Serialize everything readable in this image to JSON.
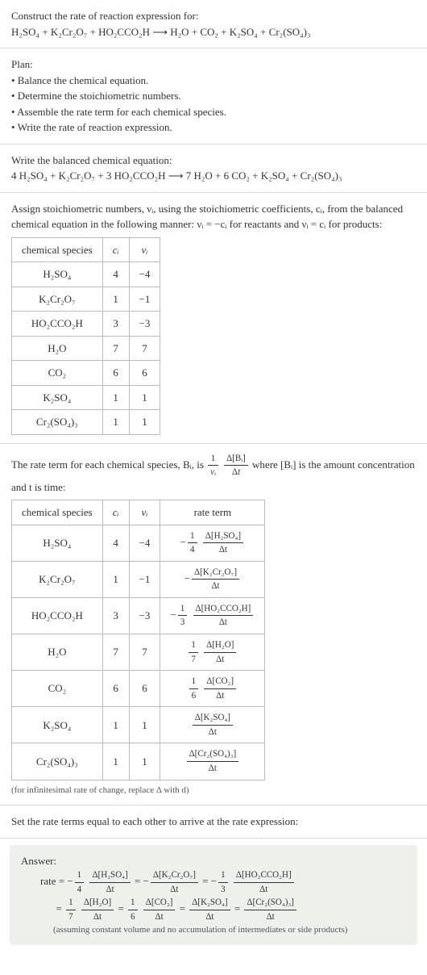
{
  "prompt": {
    "line1": "Construct the rate of reaction expression for:",
    "equation": "H₂SO₄ + K₂Cr₂O₇ + HO₂CCO₂H ⟶ H₂O + CO₂ + K₂SO₄ + Cr₂(SO₄)₃"
  },
  "plan": {
    "title": "Plan:",
    "items": [
      "• Balance the chemical equation.",
      "• Determine the stoichiometric numbers.",
      "• Assemble the rate term for each chemical species.",
      "• Write the rate of reaction expression."
    ]
  },
  "balanced": {
    "title": "Write the balanced chemical equation:",
    "equation": "4 H₂SO₄ + K₂Cr₂O₇ + 3 HO₂CCO₂H ⟶ 7 H₂O + 6 CO₂ + K₂SO₄ + Cr₂(SO₄)₃"
  },
  "stoich": {
    "intro_a": "Assign stoichiometric numbers, νᵢ, using the stoichiometric coefficients, cᵢ, from the balanced chemical equation in the following manner: νᵢ = −cᵢ for reactants and νᵢ = cᵢ for products:",
    "headers": [
      "chemical species",
      "cᵢ",
      "νᵢ"
    ],
    "rows": [
      {
        "sp": "H₂SO₄",
        "c": "4",
        "v": "−4"
      },
      {
        "sp": "K₂Cr₂O₇",
        "c": "1",
        "v": "−1"
      },
      {
        "sp": "HO₂CCO₂H",
        "c": "3",
        "v": "−3"
      },
      {
        "sp": "H₂O",
        "c": "7",
        "v": "7"
      },
      {
        "sp": "CO₂",
        "c": "6",
        "v": "6"
      },
      {
        "sp": "K₂SO₄",
        "c": "1",
        "v": "1"
      },
      {
        "sp": "Cr₂(SO₄)₃",
        "c": "1",
        "v": "1"
      }
    ]
  },
  "rateterm": {
    "intro_a": "The rate term for each chemical species, Bᵢ, is ",
    "intro_b": " where [Bᵢ] is the amount concentration and t is time:",
    "headers": [
      "chemical species",
      "cᵢ",
      "νᵢ",
      "rate term"
    ],
    "rows": [
      {
        "sp": "H₂SO₄",
        "c": "4",
        "v": "−4",
        "pre": "−",
        "fn": "1",
        "fd": "4",
        "num": "Δ[H₂SO₄]",
        "den": "Δt"
      },
      {
        "sp": "K₂Cr₂O₇",
        "c": "1",
        "v": "−1",
        "pre": "−",
        "fn": "",
        "fd": "",
        "num": "Δ[K₂Cr₂O₇]",
        "den": "Δt"
      },
      {
        "sp": "HO₂CCO₂H",
        "c": "3",
        "v": "−3",
        "pre": "−",
        "fn": "1",
        "fd": "3",
        "num": "Δ[HO₂CCO₂H]",
        "den": "Δt"
      },
      {
        "sp": "H₂O",
        "c": "7",
        "v": "7",
        "pre": "",
        "fn": "1",
        "fd": "7",
        "num": "Δ[H₂O]",
        "den": "Δt"
      },
      {
        "sp": "CO₂",
        "c": "6",
        "v": "6",
        "pre": "",
        "fn": "1",
        "fd": "6",
        "num": "Δ[CO₂]",
        "den": "Δt"
      },
      {
        "sp": "K₂SO₄",
        "c": "1",
        "v": "1",
        "pre": "",
        "fn": "",
        "fd": "",
        "num": "Δ[K₂SO₄]",
        "den": "Δt"
      },
      {
        "sp": "Cr₂(SO₄)₃",
        "c": "1",
        "v": "1",
        "pre": "",
        "fn": "",
        "fd": "",
        "num": "Δ[Cr₂(SO₄)₃]",
        "den": "Δt"
      }
    ],
    "note": "(for infinitesimal rate of change, replace Δ with d)"
  },
  "final": {
    "text": "Set the rate terms equal to each other to arrive at the rate expression:"
  },
  "answer": {
    "label": "Answer:",
    "rate_label": "rate = ",
    "note": "(assuming constant volume and no accumulation of intermediates or side products)"
  }
}
